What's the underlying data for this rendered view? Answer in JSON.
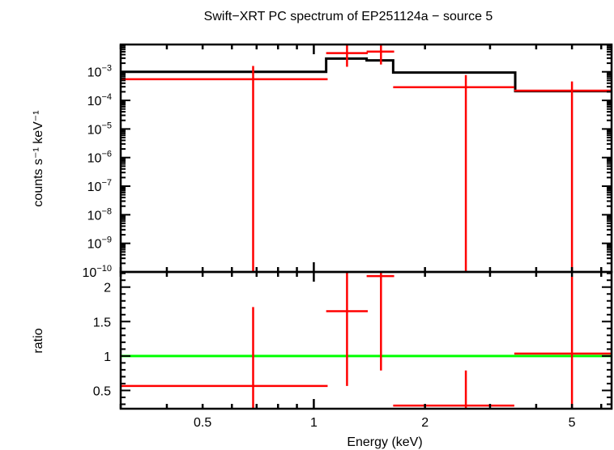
{
  "title": "Swift−XRT PC spectrum of EP251124a − source 5",
  "colors": {
    "data": "#ff0000",
    "model": "#000000",
    "ratio_line": "#00ff00",
    "axes": "#000000"
  },
  "chart_data": [
    {
      "type": "line",
      "panel": "top",
      "ylabel": "counts s⁻¹ keV⁻¹",
      "xscale": "log",
      "yscale": "log",
      "xlim": [
        0.3,
        6.4
      ],
      "ylim": [
        1e-10,
        0.009
      ],
      "ytick_labels": [
        {
          "v": 0.001,
          "base": "10",
          "exp": "−3"
        },
        {
          "v": 0.0001,
          "base": "10",
          "exp": "−4"
        },
        {
          "v": 1e-05,
          "base": "10",
          "exp": "−5"
        },
        {
          "v": 1e-06,
          "base": "10",
          "exp": "−6"
        },
        {
          "v": 1e-07,
          "base": "10",
          "exp": "−7"
        },
        {
          "v": 1e-08,
          "base": "10",
          "exp": "−8"
        },
        {
          "v": 1e-09,
          "base": "10",
          "exp": "−9"
        },
        {
          "v": 1e-10,
          "base": "10",
          "exp": "−10"
        }
      ],
      "data": [
        {
          "x": 0.685,
          "xlo": 0.3,
          "xhi": 1.09,
          "y": 0.00055,
          "ylo": 0,
          "yhi": 0.0016
        },
        {
          "x": 1.23,
          "xlo": 1.08,
          "xhi": 1.4,
          "y": 0.0045,
          "ylo": 0.0015,
          "yhi": 0.01
        },
        {
          "x": 1.52,
          "xlo": 1.39,
          "xhi": 1.65,
          "y": 0.0051,
          "ylo": 0.0018,
          "yhi": 0.01
        },
        {
          "x": 2.58,
          "xlo": 1.64,
          "xhi": 3.49,
          "y": 0.00029,
          "ylo": 0,
          "yhi": 0.00077
        },
        {
          "x": 5.0,
          "xlo": 3.49,
          "xhi": 6.4,
          "y": 0.00022,
          "ylo": 0,
          "yhi": 0.00046
        }
      ],
      "model_steps": [
        {
          "xlo": 0.3,
          "xhi": 1.08,
          "y": 0.001
        },
        {
          "xlo": 1.08,
          "xhi": 1.39,
          "y": 0.0029
        },
        {
          "xlo": 1.39,
          "xhi": 1.64,
          "y": 0.0025
        },
        {
          "xlo": 1.64,
          "xhi": 3.51,
          "y": 0.00094
        },
        {
          "xlo": 3.51,
          "xhi": 6.4,
          "y": 0.00021
        }
      ]
    },
    {
      "type": "line",
      "panel": "bottom",
      "xlabel": "Energy (keV)",
      "ylabel": "ratio",
      "xscale": "log",
      "yscale": "linear",
      "xlim": [
        0.3,
        6.4
      ],
      "ylim": [
        0.235,
        2.22
      ],
      "xtick_labels": [
        {
          "v": 0.5,
          "label": "0.5"
        },
        {
          "v": 1,
          "label": "1"
        },
        {
          "v": 2,
          "label": "2"
        },
        {
          "v": 5,
          "label": "5"
        }
      ],
      "ytick_labels": [
        {
          "v": 2,
          "label": "2"
        },
        {
          "v": 1.5,
          "label": "1.5"
        },
        {
          "v": 1,
          "label": "1"
        },
        {
          "v": 0.5,
          "label": "0.5"
        }
      ],
      "reference_line": 1,
      "data": [
        {
          "x": 0.685,
          "xlo": 0.3,
          "xhi": 1.09,
          "y": 0.565,
          "ylo": 0,
          "yhi": 1.71
        },
        {
          "x": 1.23,
          "xlo": 1.08,
          "xhi": 1.4,
          "y": 1.65,
          "ylo": 0.565,
          "yhi": 3
        },
        {
          "x": 1.52,
          "xlo": 1.39,
          "xhi": 1.65,
          "y": 2.16,
          "ylo": 0.79,
          "yhi": 3
        },
        {
          "x": 2.58,
          "xlo": 1.64,
          "xhi": 3.49,
          "y": 0.28,
          "ylo": 0,
          "yhi": 0.79
        },
        {
          "x": 5.0,
          "xlo": 3.49,
          "xhi": 6.4,
          "y": 1.035,
          "ylo": 0,
          "yhi": 2.15
        }
      ]
    }
  ]
}
